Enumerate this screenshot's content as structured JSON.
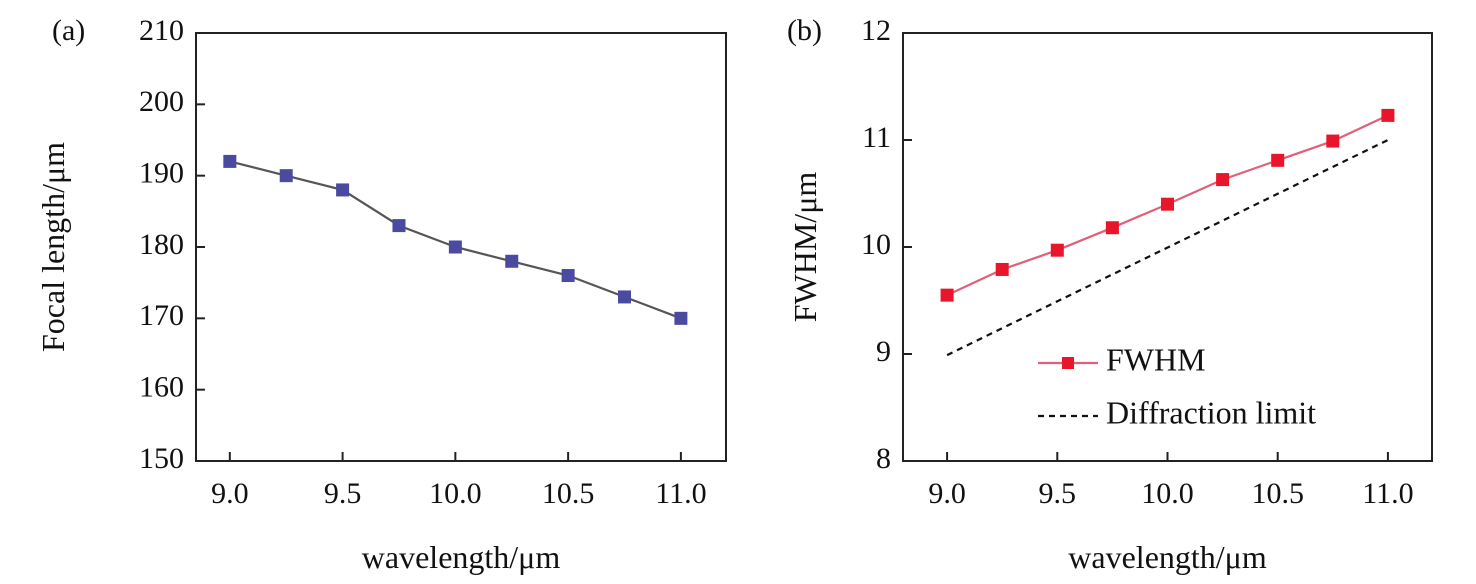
{
  "chart_data": [
    {
      "panel_label": "(a)",
      "type": "line",
      "xlabel": "wavelength/μm",
      "ylabel": "Focal length/μm",
      "xlim": [
        8.85,
        11.2
      ],
      "ylim": [
        150,
        210
      ],
      "xticks": [
        9.0,
        9.5,
        10.0,
        10.5,
        11.0
      ],
      "xtick_labels": [
        "9.0",
        "9.5",
        "10.0",
        "10.5",
        "11.0"
      ],
      "yticks": [
        150,
        160,
        170,
        180,
        190,
        200,
        210
      ],
      "ytick_labels": [
        "150",
        "160",
        "170",
        "180",
        "190",
        "200",
        "210"
      ],
      "grid": false,
      "series": [
        {
          "marker": "square",
          "line_color": "#555555",
          "marker_color": "#4a4aa0",
          "x": [
            9.0,
            9.25,
            9.5,
            9.75,
            10.0,
            10.25,
            10.5,
            10.75,
            11.0
          ],
          "values": [
            192,
            190,
            188,
            183,
            180,
            178,
            176,
            173,
            170
          ]
        }
      ]
    },
    {
      "panel_label": "(b)",
      "type": "line",
      "xlabel": "wavelength/μm",
      "ylabel": "FWHM/μm",
      "xlim": [
        8.8,
        11.2
      ],
      "ylim": [
        8,
        12
      ],
      "xticks": [
        9.0,
        9.5,
        10.0,
        10.5,
        11.0
      ],
      "xtick_labels": [
        "9.0",
        "9.5",
        "10.0",
        "10.5",
        "11.0"
      ],
      "yticks": [
        8,
        9,
        10,
        11,
        12
      ],
      "ytick_labels": [
        "8",
        "9",
        "10",
        "11",
        "12"
      ],
      "grid": false,
      "legend_position": "bottom-right",
      "series": [
        {
          "name": "FWHM",
          "marker": "square",
          "line_color": "#e0607a",
          "marker_color": "#e8162a",
          "dashed": false,
          "x": [
            9.0,
            9.25,
            9.5,
            9.75,
            10.0,
            10.25,
            10.5,
            10.75,
            11.0
          ],
          "values": [
            9.55,
            9.79,
            9.97,
            10.18,
            10.4,
            10.63,
            10.81,
            10.99,
            11.23
          ]
        },
        {
          "name": "Diffraction limit",
          "marker": "none",
          "line_color": "#111111",
          "dashed": true,
          "x": [
            9.0,
            11.0
          ],
          "values": [
            8.99,
            11.0
          ]
        }
      ]
    }
  ]
}
